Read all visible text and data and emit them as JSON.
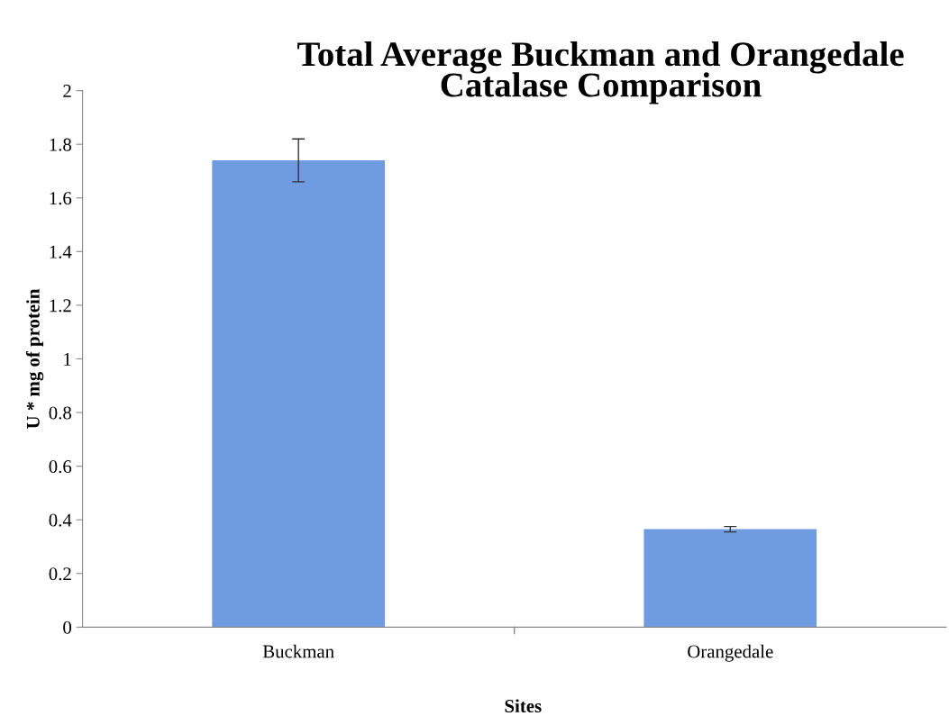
{
  "chart_data": {
    "type": "bar",
    "title": "Total Average Buckman and Orangedale\nCatalase Comparison",
    "xlabel": "Sites",
    "ylabel": "U * mg of protein",
    "categories": [
      "Buckman",
      "Orangedale"
    ],
    "values": [
      1.74,
      0.365
    ],
    "errors": [
      0.08,
      0.01
    ],
    "color": "#6f9be0",
    "ylim": [
      0,
      2
    ],
    "yticks": [
      0,
      0.2,
      0.4,
      0.6,
      0.8,
      1,
      1.2,
      1.4,
      1.6,
      1.8,
      2
    ],
    "grid": false,
    "legend": false
  }
}
